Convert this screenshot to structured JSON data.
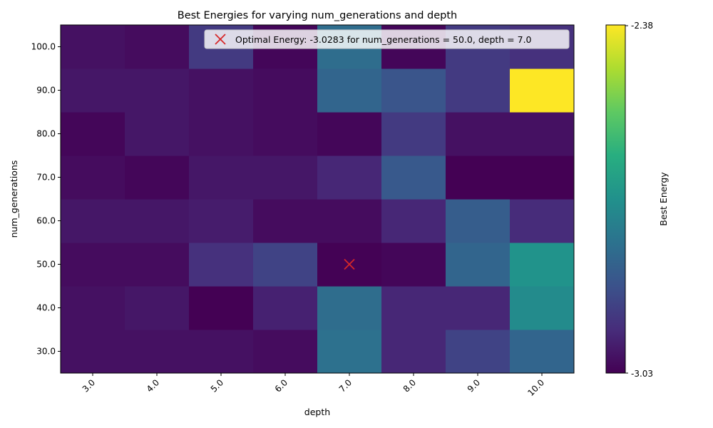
{
  "chart_data": {
    "type": "heatmap",
    "title": "Best Energies for varying num_generations and depth",
    "xlabel": "depth",
    "ylabel": "num_generations",
    "x_ticks": [
      "3.0",
      "4.0",
      "5.0",
      "6.0",
      "7.0",
      "8.0",
      "9.0",
      "10.0"
    ],
    "y_ticks": [
      "30.0",
      "40.0",
      "50.0",
      "60.0",
      "70.0",
      "80.0",
      "90.0",
      "100.0"
    ],
    "z": [
      [
        -3.0,
        -3.0,
        -3.0,
        -3.01,
        -2.79,
        -2.96,
        -2.9,
        -2.82
      ],
      [
        -3.0,
        -2.99,
        -3.03,
        -2.97,
        -2.8,
        -2.96,
        -2.96,
        -2.72
      ],
      [
        -3.01,
        -3.01,
        -2.94,
        -2.9,
        -3.0283,
        -3.02,
        -2.82,
        -2.7
      ],
      [
        -2.99,
        -2.99,
        -2.98,
        -3.01,
        -3.01,
        -2.96,
        -2.84,
        -2.95
      ],
      [
        -3.01,
        -3.02,
        -2.99,
        -2.99,
        -2.96,
        -2.85,
        -3.03,
        -3.03
      ],
      [
        -3.02,
        -2.99,
        -3.0,
        -3.01,
        -3.02,
        -2.92,
        -3.0,
        -3.0
      ],
      [
        -2.99,
        -2.99,
        -3.0,
        -3.01,
        -2.82,
        -2.86,
        -2.92,
        -2.38
      ],
      [
        -3.0,
        -3.01,
        -2.92,
        -3.02,
        -2.8,
        -3.02,
        -2.92,
        -2.94
      ]
    ],
    "colormap": "viridis",
    "colorbar": {
      "label": "Best Energy",
      "min": -3.03,
      "max": -2.38,
      "min_label": "-3.03",
      "max_label": "-2.38"
    },
    "marker": {
      "depth": 7.0,
      "num_generations": 50.0,
      "symbol": "x",
      "color": "#d62728",
      "legend": "Optimal Energy: -3.0283 for num_generations = 50.0, depth = 7.0"
    },
    "legend_position": "upper right"
  }
}
